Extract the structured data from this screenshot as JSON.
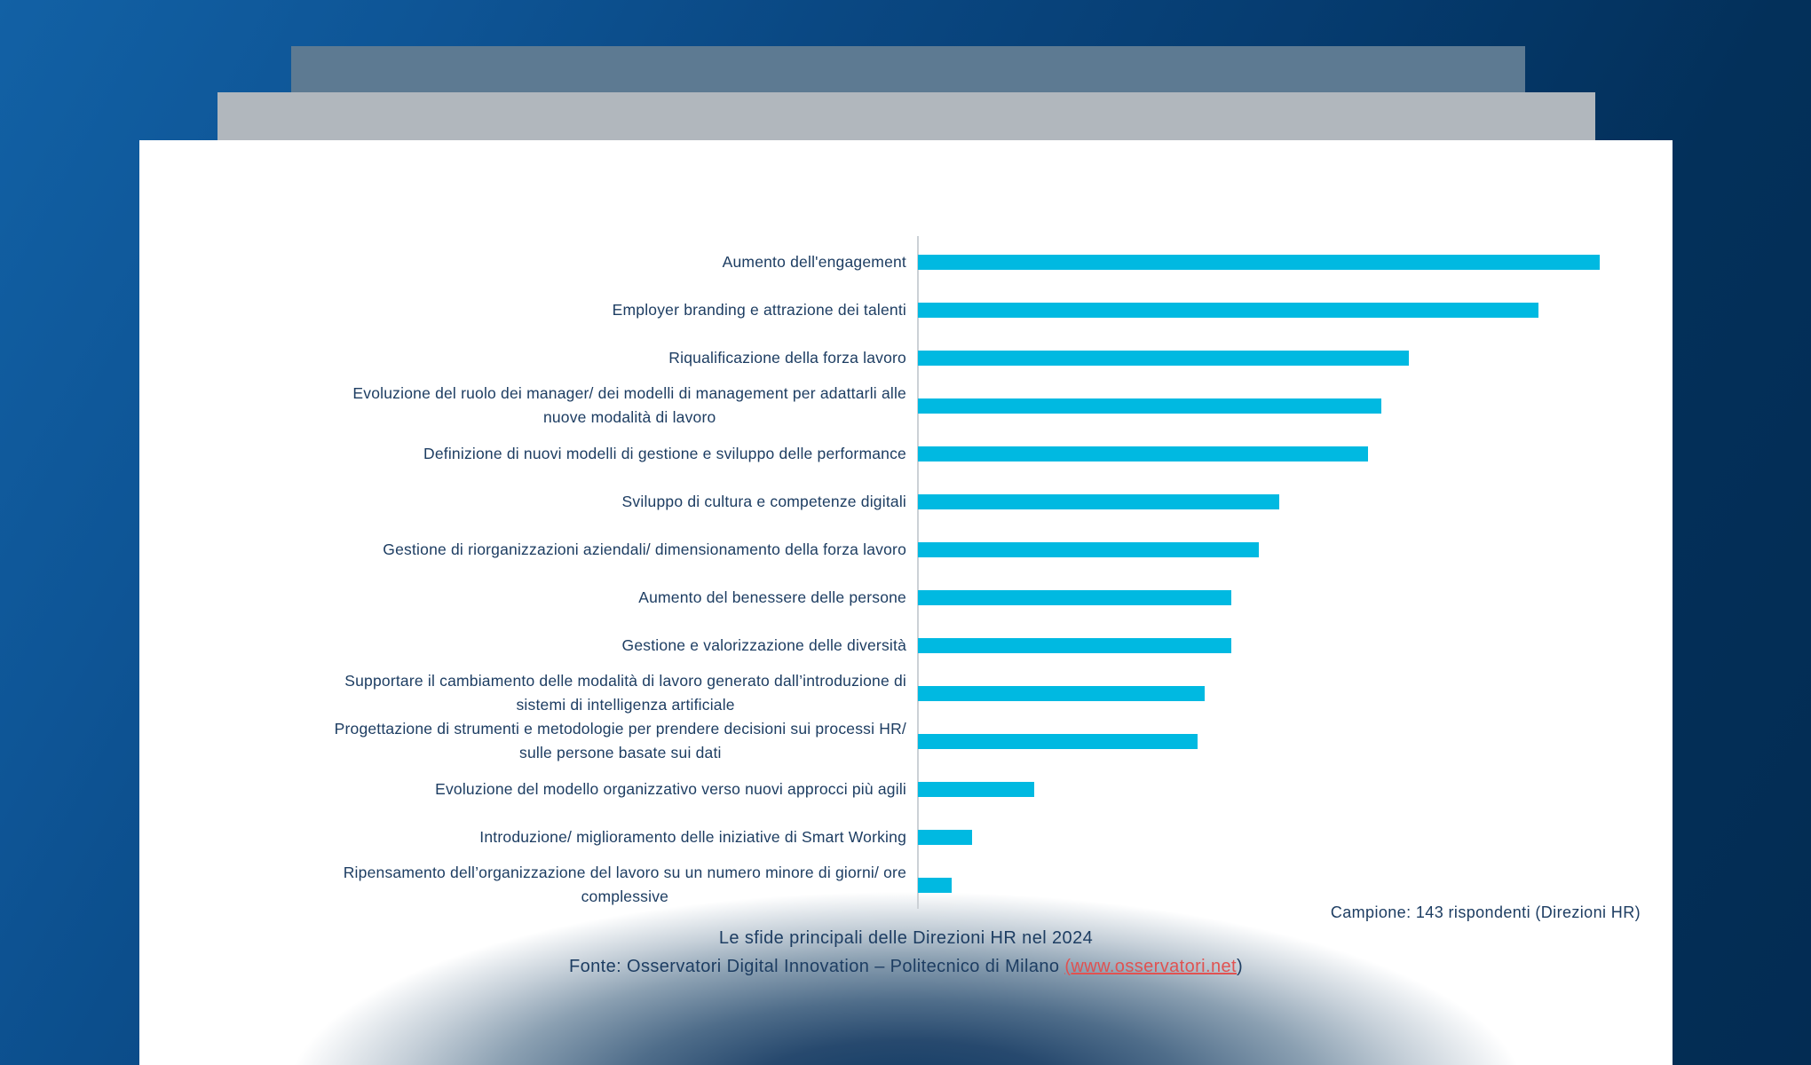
{
  "slide": {
    "kind": "presentation-slide-with-chart"
  },
  "colors": {
    "background_top_left": "#1261a5",
    "background_bottom_right": "#032c53",
    "card_back_slate": "#5d7a92",
    "card_middle_gray": "#b1b7bd",
    "card_front": "#ffffff",
    "bar": "#00b9e1",
    "text_navy": "#1d3d62",
    "axis_line": "#ccd1d6",
    "link_red": "#e05251",
    "shadow_blob": "#0e3a64"
  },
  "chart_data": {
    "type": "bar",
    "orientation": "horizontal",
    "title": "Le sfide principali delle Direzioni HR nel 2024",
    "xlabel": "",
    "ylabel": "",
    "grid": false,
    "legend": null,
    "bar_color": "#00b9e1",
    "values_unit": "relative bar length (longest bar = 100); no numeric axis shown in figure",
    "categories": [
      "Aumento dell'engagement",
      "Employer branding e attrazione dei talenti",
      "Riqualificazione della forza lavoro",
      "Evoluzione del ruolo dei manager/ dei modelli di management per adattarli alle nuove modalità di lavoro",
      "Definizione di nuovi modelli di gestione e sviluppo delle performance",
      "Sviluppo di cultura e competenze digitali",
      "Gestione di riorganizzazioni aziendali/ dimensionamento della forza lavoro",
      "Aumento del benessere delle persone",
      "Gestione e valorizzazione delle diversità",
      "Supportare il cambiamento delle modalità di lavoro generato dall’introduzione di sistemi di intelligenza artificiale",
      "Progettazione di strumenti e metodologie per prendere decisioni sui processi HR/ sulle persone basate sui dati",
      "Evoluzione del modello organizzativo verso nuovi approcci più agili",
      "Introduzione/ miglioramento delle iniziative di Smart Working",
      "Ripensamento dell’organizzazione del lavoro su un numero minore di giorni/ ore complessive"
    ],
    "category_lines": [
      [
        "Aumento dell'engagement"
      ],
      [
        "Employer branding e attrazione dei talenti"
      ],
      [
        "Riqualificazione della forza lavoro"
      ],
      [
        "Evoluzione del ruolo dei manager/ dei modelli di management per adattarli alle",
        "nuove modalità di lavoro"
      ],
      [
        "Definizione di nuovi modelli di gestione e sviluppo delle performance"
      ],
      [
        "Sviluppo di cultura e competenze digitali"
      ],
      [
        "Gestione di riorganizzazioni aziendali/ dimensionamento della forza lavoro"
      ],
      [
        "Aumento del benessere delle persone"
      ],
      [
        "Gestione e valorizzazione delle diversità"
      ],
      [
        "Supportare il cambiamento delle modalità di lavoro generato dall’introduzione di",
        "sistemi di intelligenza artificiale"
      ],
      [
        "Progettazione di strumenti e metodologie per prendere decisioni sui processi HR/",
        "sulle persone basate sui dati"
      ],
      [
        "Evoluzione del modello organizzativo verso nuovi approcci più agili"
      ],
      [
        "Introduzione/ miglioramento delle iniziative di Smart Working"
      ],
      [
        "Ripensamento dell’organizzazione del lavoro su un numero minore di giorni/ ore",
        "complessive"
      ]
    ],
    "values": [
      100,
      91,
      72,
      68,
      66,
      53,
      50,
      46,
      46,
      42,
      41,
      17,
      8,
      5
    ]
  },
  "annotations": {
    "sample_note": "Campione: 143 rispondenti (Direzioni HR)"
  },
  "caption": {
    "title": "Le sfide principali delle Direzioni HR nel 2024",
    "source_prefix": "Fonte: Osservatori Digital Innovation – Politecnico di Milano ",
    "link_open_paren": "(",
    "link_text": "www.osservatori.net",
    "close_paren": ")"
  }
}
